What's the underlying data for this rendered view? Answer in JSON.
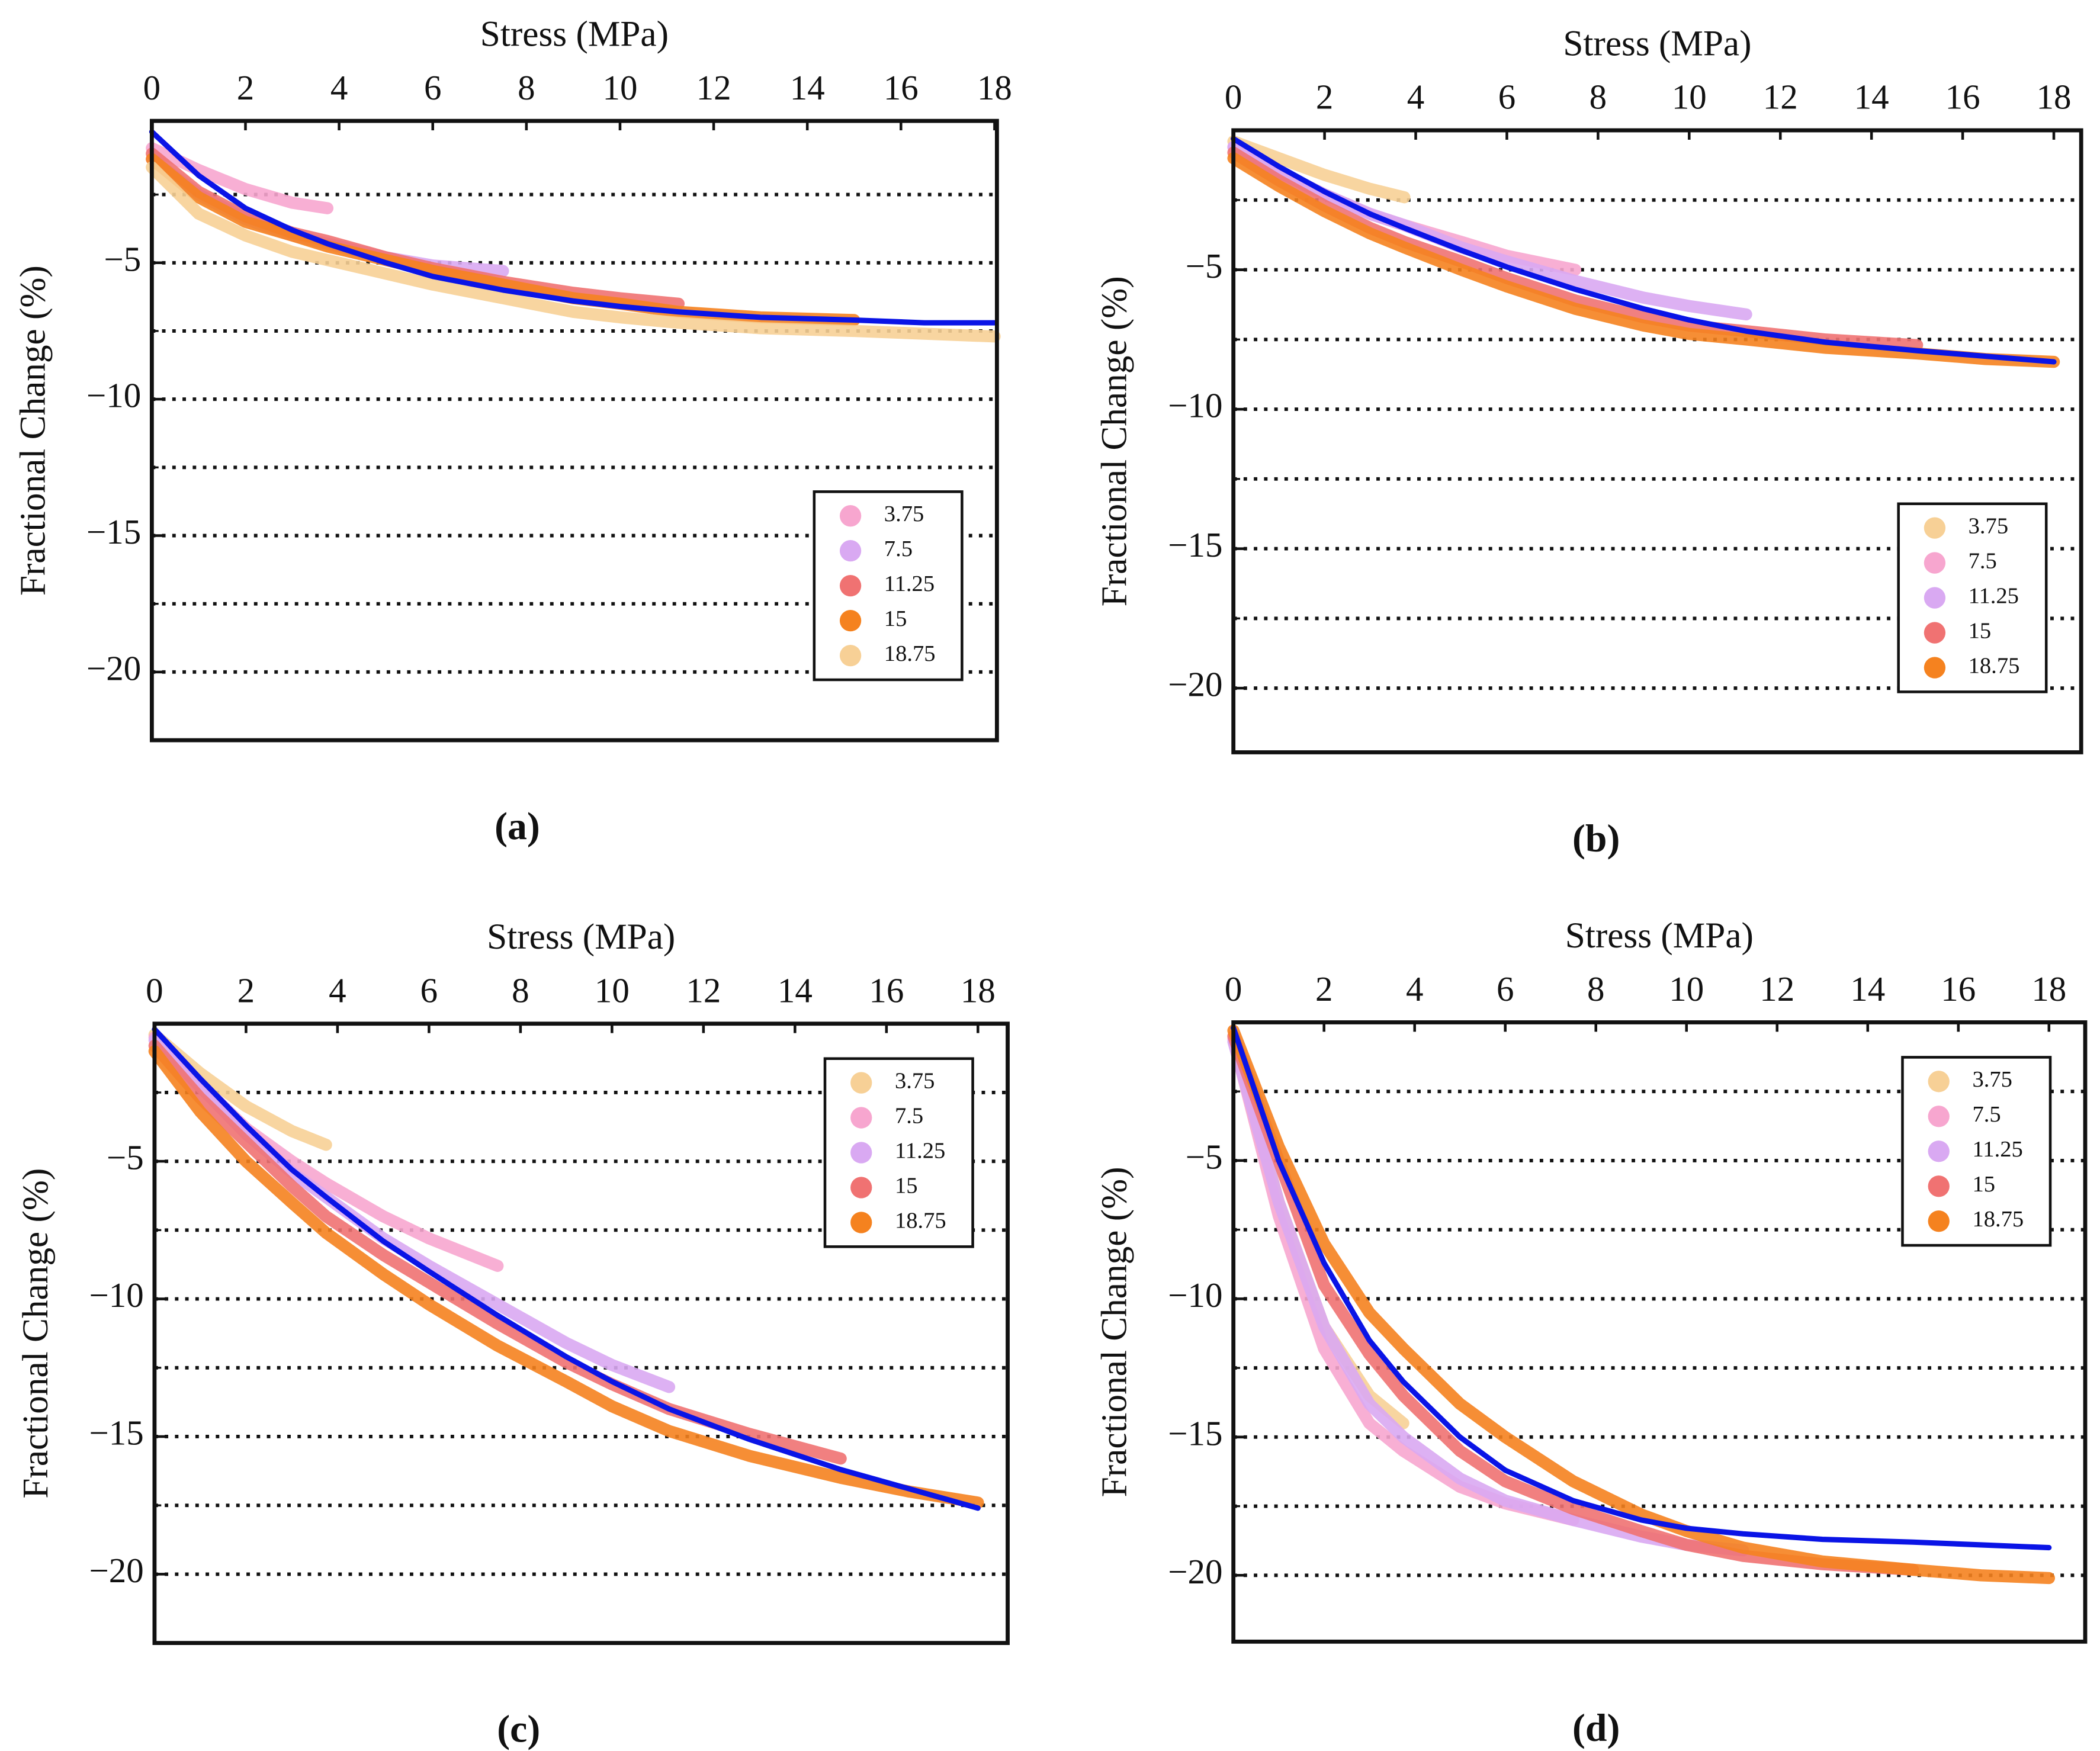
{
  "chart_data": [
    {
      "type": "line",
      "caption": "(a)",
      "xlabel": "Stress (MPa)",
      "ylabel": "Fractional Change (%)",
      "xlim": [
        0,
        18.05
      ],
      "ylim": [
        -22.5,
        0.2
      ],
      "xticks": [
        0,
        2,
        4,
        6,
        8,
        10,
        12,
        14,
        16,
        18
      ],
      "yticks": [
        {
          "value": -5,
          "label": "−5"
        },
        {
          "value": -10,
          "label": "−10"
        },
        {
          "value": -15,
          "label": "−15"
        },
        {
          "value": -20,
          "label": "−20"
        }
      ],
      "ygrid": [
        -2.5,
        -5,
        -7.5,
        -10,
        -12.5,
        -15,
        -17.5,
        -20
      ],
      "legend": "bottom right",
      "x": [
        0,
        1,
        2,
        3,
        3.75,
        5,
        6,
        7.5,
        9,
        10,
        11.25,
        13,
        15,
        16.5,
        18
      ],
      "series": [
        {
          "name": "3.75",
          "color": "#f7a6cf",
          "values": [
            -0.8,
            -1.6,
            -2.3,
            -2.8,
            -3.0,
            null,
            null,
            null,
            null,
            null,
            null,
            null,
            null,
            null,
            null
          ]
        },
        {
          "name": "7.5",
          "color": "#d9a9f2",
          "values": [
            -1.2,
            -2.5,
            -3.4,
            -4.0,
            -4.3,
            -4.8,
            -5.1,
            -5.3,
            null,
            null,
            null,
            null,
            null,
            null,
            null
          ]
        },
        {
          "name": "11.25",
          "color": "#f07272",
          "values": [
            -1.0,
            -2.4,
            -3.3,
            -3.9,
            -4.2,
            -4.8,
            -5.2,
            -5.7,
            -6.1,
            -6.3,
            -6.5,
            null,
            null,
            null,
            null
          ]
        },
        {
          "name": "15",
          "color": "#f5821f",
          "values": [
            -1.2,
            -2.6,
            -3.5,
            -4.0,
            -4.4,
            -4.9,
            -5.3,
            -5.8,
            -6.3,
            -6.5,
            -6.8,
            -7.0,
            -7.1,
            null,
            null
          ]
        },
        {
          "name": "18.75",
          "color": "#f7d096",
          "values": [
            -1.5,
            -3.2,
            -4.0,
            -4.6,
            -4.9,
            -5.4,
            -5.8,
            -6.3,
            -6.8,
            -7.0,
            -7.2,
            -7.4,
            -7.5,
            -7.6,
            -7.7
          ]
        },
        {
          "color": "#0a14e6",
          "values": [
            -0.2,
            -1.8,
            -3.0,
            -3.8,
            -4.3,
            -5.0,
            -5.5,
            -6.0,
            -6.4,
            -6.6,
            -6.8,
            -7.0,
            -7.1,
            -7.2,
            -7.2
          ]
        }
      ]
    },
    {
      "type": "line",
      "caption": "(b)",
      "xlabel": "Stress (MPa)",
      "ylabel": "Fractional Change (%)",
      "xlim": [
        0,
        18.6
      ],
      "ylim": [
        -22.3,
        0
      ],
      "xticks": [
        0,
        2,
        4,
        6,
        8,
        10,
        12,
        14,
        16,
        18
      ],
      "yticks": [
        {
          "value": -5,
          "label": "−5"
        },
        {
          "value": -10,
          "label": "−10"
        },
        {
          "value": -15,
          "label": "−15"
        },
        {
          "value": -20,
          "label": "−20"
        }
      ],
      "ygrid": [
        -2.5,
        -5,
        -7.5,
        -10,
        -12.5,
        -15,
        -17.5,
        -20
      ],
      "legend": "bottom right",
      "x": [
        0,
        1,
        2,
        3,
        3.75,
        5,
        6,
        7.5,
        9,
        10,
        11.25,
        13,
        15,
        16.5,
        18
      ],
      "series": [
        {
          "name": "3.75",
          "color": "#f7d096",
          "values": [
            -0.4,
            -1.0,
            -1.6,
            -2.1,
            -2.4,
            null,
            null,
            null,
            null,
            null,
            null,
            null,
            null,
            null,
            null
          ]
        },
        {
          "name": "7.5",
          "color": "#f7a6cf",
          "values": [
            -0.6,
            -1.5,
            -2.3,
            -3.0,
            -3.4,
            -4.0,
            -4.5,
            -5.0,
            null,
            null,
            null,
            null,
            null,
            null,
            null
          ]
        },
        {
          "name": "11.25",
          "color": "#d9a9f2",
          "values": [
            -0.6,
            -1.5,
            -2.3,
            -3.0,
            -3.4,
            -4.2,
            -4.7,
            -5.4,
            -6.0,
            -6.3,
            -6.6,
            null,
            null,
            null,
            null
          ]
        },
        {
          "name": "15",
          "color": "#f07272",
          "values": [
            -0.8,
            -1.8,
            -2.7,
            -3.5,
            -4.0,
            -4.7,
            -5.3,
            -6.1,
            -6.7,
            -7.0,
            -7.2,
            -7.5,
            -7.7,
            null,
            null
          ]
        },
        {
          "name": "18.75",
          "color": "#f5821f",
          "values": [
            -1.0,
            -2.0,
            -2.9,
            -3.7,
            -4.2,
            -5.0,
            -5.6,
            -6.4,
            -7.0,
            -7.3,
            -7.5,
            -7.8,
            -8.0,
            -8.2,
            -8.3
          ]
        },
        {
          "color": "#0a14e6",
          "values": [
            -0.3,
            -1.3,
            -2.2,
            -3.0,
            -3.5,
            -4.3,
            -4.9,
            -5.7,
            -6.4,
            -6.8,
            -7.2,
            -7.6,
            -7.9,
            -8.1,
            -8.3
          ]
        }
      ]
    },
    {
      "type": "line",
      "caption": "(c)",
      "xlabel": "Stress (MPa)",
      "ylabel": "Fractional Change (%)",
      "xlim": [
        0,
        18.65
      ],
      "ylim": [
        -22.5,
        0
      ],
      "xticks": [
        0,
        2,
        4,
        6,
        8,
        10,
        12,
        14,
        16,
        18
      ],
      "yticks": [
        {
          "value": -5,
          "label": "−5"
        },
        {
          "value": -10,
          "label": "−10"
        },
        {
          "value": -15,
          "label": "−15"
        },
        {
          "value": -20,
          "label": "−20"
        }
      ],
      "ygrid": [
        -2.5,
        -5,
        -7.5,
        -10,
        -12.5,
        -15,
        -17.5,
        -20
      ],
      "legend": "top right",
      "x": [
        0,
        1,
        2,
        3,
        3.75,
        5,
        6,
        7.5,
        9,
        10,
        11.25,
        13,
        15,
        16.5,
        18
      ],
      "series": [
        {
          "name": "3.75",
          "color": "#f7d096",
          "values": [
            -0.4,
            -1.8,
            -3.0,
            -3.9,
            -4.4,
            null,
            null,
            null,
            null,
            null,
            null,
            null,
            null,
            null,
            null
          ]
        },
        {
          "name": "7.5",
          "color": "#f7a6cf",
          "values": [
            -0.5,
            -2.2,
            -3.8,
            -5.0,
            -5.8,
            -7.0,
            -7.8,
            -8.8,
            null,
            null,
            null,
            null,
            null,
            null,
            null
          ]
        },
        {
          "name": "11.25",
          "color": "#d9a9f2",
          "values": [
            -0.6,
            -2.3,
            -4.0,
            -5.4,
            -6.3,
            -7.8,
            -8.8,
            -10.2,
            -11.6,
            -12.4,
            -13.2,
            null,
            null,
            null,
            null
          ]
        },
        {
          "name": "15",
          "color": "#f07272",
          "values": [
            -0.8,
            -2.7,
            -4.3,
            -5.9,
            -7.0,
            -8.4,
            -9.4,
            -10.9,
            -12.3,
            -13.1,
            -14.0,
            -14.9,
            -15.8,
            null,
            null
          ]
        },
        {
          "name": "18.75",
          "color": "#f5821f",
          "values": [
            -1.0,
            -3.2,
            -5.0,
            -6.5,
            -7.6,
            -9.1,
            -10.2,
            -11.7,
            -13.0,
            -13.9,
            -14.8,
            -15.7,
            -16.5,
            -17.0,
            -17.4
          ]
        },
        {
          "color": "#0a14e6",
          "values": [
            -0.2,
            -2.0,
            -3.7,
            -5.3,
            -6.3,
            -7.9,
            -9.0,
            -10.6,
            -12.1,
            -13.0,
            -14.0,
            -15.1,
            -16.2,
            -16.9,
            -17.6
          ]
        }
      ]
    },
    {
      "type": "line",
      "caption": "(d)",
      "xlabel": "Stress (MPa)",
      "ylabel": "Fractional Change (%)",
      "xlim": [
        0,
        18.8
      ],
      "ylim": [
        -22.4,
        0
      ],
      "xticks": [
        0,
        2,
        4,
        6,
        8,
        10,
        12,
        14,
        16,
        18
      ],
      "yticks": [
        {
          "value": -5,
          "label": "−5"
        },
        {
          "value": -10,
          "label": "−10"
        },
        {
          "value": -15,
          "label": "−15"
        },
        {
          "value": -20,
          "label": "−20"
        }
      ],
      "ygrid": [
        -2.5,
        -5,
        -7.5,
        -10,
        -12.5,
        -15,
        -17.5,
        -20
      ],
      "legend": "top right",
      "x": [
        0,
        1,
        2,
        3,
        3.75,
        5,
        6,
        7.5,
        9,
        10,
        11.25,
        13,
        15,
        16.5,
        18
      ],
      "series": [
        {
          "name": "3.75",
          "color": "#f7d096",
          "values": [
            -0.5,
            -6.5,
            -11.0,
            -13.5,
            -14.5,
            null,
            null,
            null,
            null,
            null,
            null,
            null,
            null,
            null,
            null
          ]
        },
        {
          "name": "7.5",
          "color": "#f7a6cf",
          "values": [
            -0.6,
            -7.0,
            -11.8,
            -14.5,
            -15.5,
            -16.8,
            -17.4,
            -18.0,
            null,
            null,
            null,
            null,
            null,
            null,
            null
          ]
        },
        {
          "name": "11.25",
          "color": "#d9a9f2",
          "values": [
            -0.7,
            -6.5,
            -11.0,
            -13.8,
            -15.0,
            -16.5,
            -17.3,
            -18.0,
            -18.6,
            -18.9,
            -19.1,
            null,
            null,
            null,
            null
          ]
        },
        {
          "name": "15",
          "color": "#f07272",
          "values": [
            -0.5,
            -5.0,
            -9.5,
            -12.0,
            -13.5,
            -15.5,
            -16.6,
            -17.6,
            -18.4,
            -18.9,
            -19.3,
            -19.6,
            -19.8,
            null,
            null
          ]
        },
        {
          "name": "18.75",
          "color": "#f5821f",
          "values": [
            -0.3,
            -4.5,
            -8.0,
            -10.5,
            -11.8,
            -13.8,
            -15.0,
            -16.6,
            -17.8,
            -18.4,
            -19.0,
            -19.5,
            -19.8,
            -20.0,
            -20.1
          ]
        },
        {
          "color": "#0a14e6",
          "values": [
            -0.2,
            -5.0,
            -8.7,
            -11.5,
            -13.0,
            -15.0,
            -16.2,
            -17.3,
            -18.0,
            -18.3,
            -18.5,
            -18.7,
            -18.8,
            -18.9,
            -19.0
          ]
        }
      ]
    }
  ]
}
